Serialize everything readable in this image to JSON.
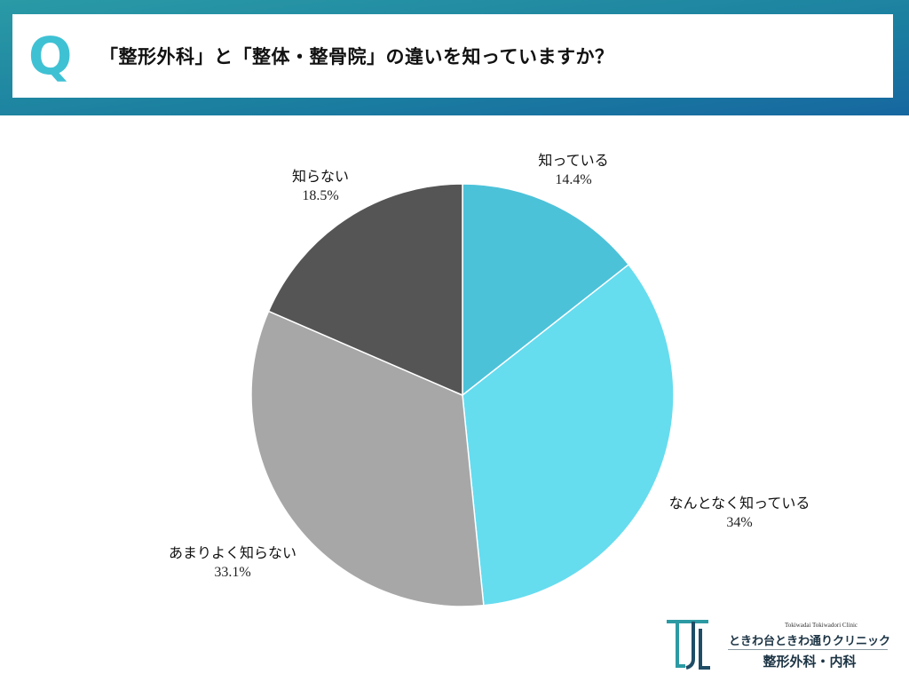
{
  "header": {
    "q_mark": "Q",
    "question": "「整形外科」と「整体・整骨院」の違いを知っていますか？"
  },
  "colors": {
    "header_teal": "#2a9aa6",
    "header_blue": "#1667a0",
    "q_mark": "#3fc1d4"
  },
  "chart_data": {
    "type": "pie",
    "title": "",
    "start_angle_deg": 0,
    "direction": "clockwise",
    "slices": [
      {
        "label": "知っている",
        "value": 14.4,
        "value_label": "14.4%",
        "color": "#4cc2d9"
      },
      {
        "label": "なんとなく知っている",
        "value": 34,
        "value_label": "34%",
        "color": "#66dcef"
      },
      {
        "label": "あまりよく知らない",
        "value": 33.1,
        "value_label": "33.1%",
        "color": "#a7a7a7"
      },
      {
        "label": "知らない",
        "value": 18.5,
        "value_label": "18.5%",
        "color": "#555555"
      }
    ]
  },
  "logo": {
    "subtitle": "Tokiwadai Tokiwadori Clinic",
    "name": "ときわ台ときわ通りクリニック",
    "department": "整形外科・内科",
    "icon": "clinic-tl-logo-icon"
  }
}
